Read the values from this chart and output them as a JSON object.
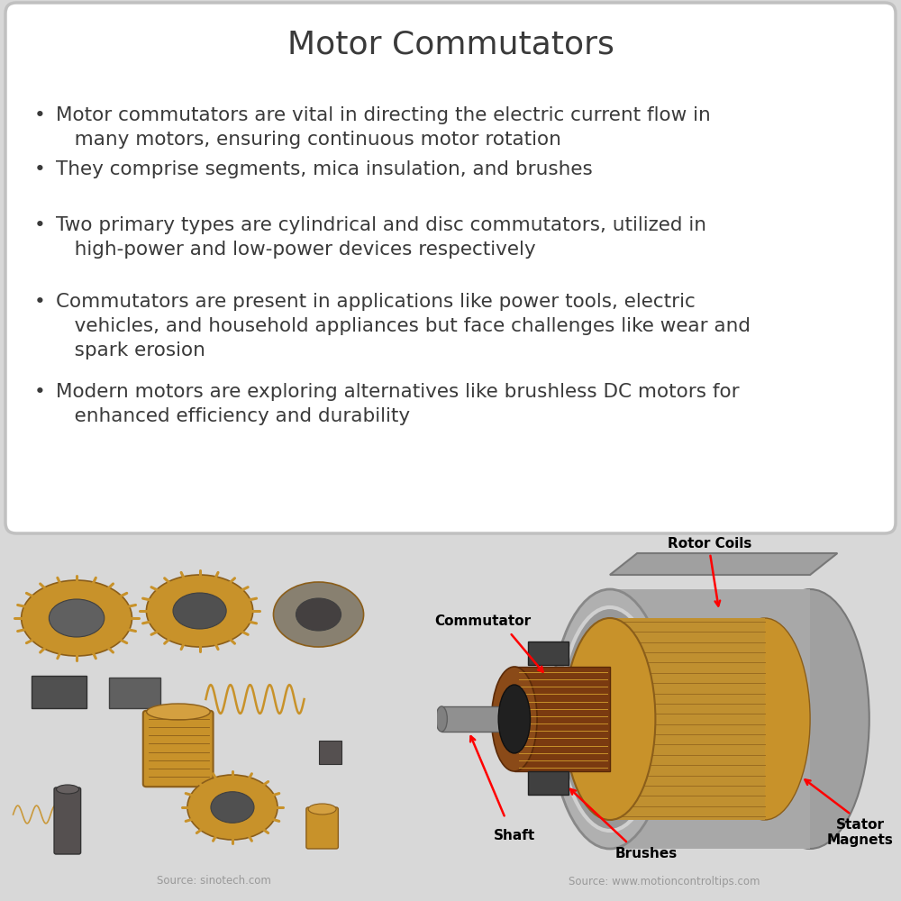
{
  "title": "Motor Commutators",
  "title_fontsize": 26,
  "title_color": "#3a3a3a",
  "background_color": "#d8d8d8",
  "text_box_color": "#ffffff",
  "text_box_edge": "#c0c0c0",
  "bullet_points": [
    "Motor commutators are vital in directing the electric current flow in\n   many motors, ensuring continuous motor rotation",
    "They comprise segments, mica insulation, and brushes",
    "Two primary types are cylindrical and disc commutators, utilized in\n   high-power and low-power devices respectively",
    "Commutators are present in applications like power tools, electric\n   vehicles, and household appliances but face challenges like wear and\n   spark erosion",
    "Modern motors are exploring alternatives like brushless DC motors for\n   enhanced efficiency and durability"
  ],
  "bullet_color": "#3a3a3a",
  "bullet_fontsize": 15.5,
  "source_left": "Source: sinotech.com",
  "source_right": "Source: www.motioncontroltips.com",
  "source_fontsize": 8.5,
  "source_color": "#999999",
  "left_bg": "#f5f0e8",
  "right_bg": "#f0f0f0",
  "copper": "#c8922a",
  "copper_dark": "#8B5E1A",
  "gray_dark": "#606060",
  "gray_med": "#909090",
  "gray_light": "#b8b8b8",
  "brown_dark": "#7a3a10",
  "brown_med": "#a05020"
}
